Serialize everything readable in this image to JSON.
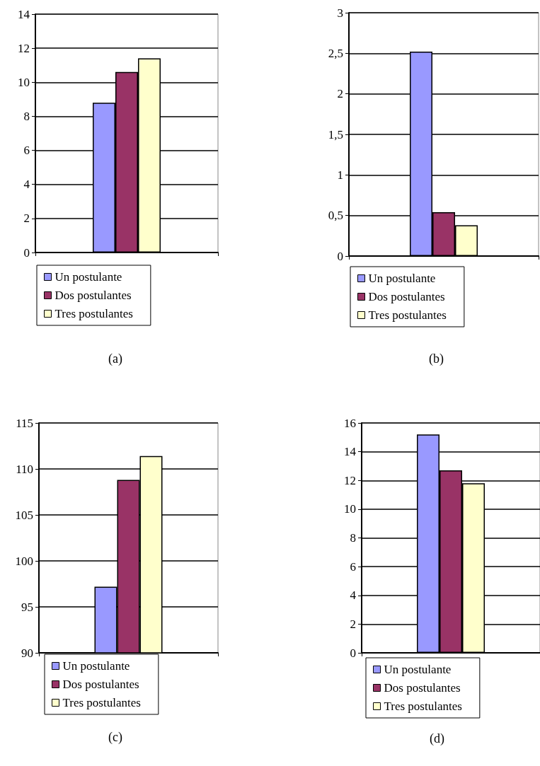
{
  "chart_data": [
    {
      "type": "bar",
      "categories": [
        null
      ],
      "series": [
        {
          "name": "Un postulante",
          "color": "#9999ff",
          "values": [
            8.8
          ]
        },
        {
          "name": "Dos postulantes",
          "color": "#993366",
          "values": [
            10.6
          ]
        },
        {
          "name": "Tres postulantes",
          "color": "#ffffcc",
          "values": [
            11.4
          ]
        }
      ],
      "ylim": [
        0,
        14
      ],
      "yticks": [
        0,
        2,
        4,
        6,
        8,
        10,
        12,
        14
      ],
      "grid": "y",
      "legend": "bottom",
      "annotations": [
        "(a)"
      ]
    },
    {
      "type": "bar",
      "categories": [
        null
      ],
      "series": [
        {
          "name": "Un postulante",
          "color": "#9999ff",
          "values": [
            2.52
          ]
        },
        {
          "name": "Dos postulantes",
          "color": "#993366",
          "values": [
            0.54
          ]
        },
        {
          "name": "Tres postulantes",
          "color": "#ffffcc",
          "values": [
            0.38
          ]
        }
      ],
      "ylim": [
        0,
        3
      ],
      "yticks": [
        0,
        {
          "value": 0.5,
          "label": "0,5"
        },
        1,
        {
          "value": 1.5,
          "label": "1,5"
        },
        2,
        {
          "value": 2.5,
          "label": "2,5"
        },
        3
      ],
      "grid": "y",
      "legend": "bottom",
      "annotations": [
        "(b)"
      ]
    },
    {
      "type": "bar",
      "categories": [
        null
      ],
      "series": [
        {
          "name": "Un postulante",
          "color": "#9999ff",
          "values": [
            97.2
          ]
        },
        {
          "name": "Dos postulantes",
          "color": "#993366",
          "values": [
            108.8
          ]
        },
        {
          "name": "Tres postulantes",
          "color": "#ffffcc",
          "values": [
            111.4
          ]
        }
      ],
      "ylim": [
        90,
        115
      ],
      "yticks": [
        90,
        95,
        100,
        105,
        110,
        115
      ],
      "grid": "y",
      "legend": "bottom",
      "annotations": [
        "(c)"
      ]
    },
    {
      "type": "bar",
      "categories": [
        null
      ],
      "series": [
        {
          "name": "Un postulante",
          "color": "#9999ff",
          "values": [
            15.2
          ]
        },
        {
          "name": "Dos postulantes",
          "color": "#993366",
          "values": [
            12.7
          ]
        },
        {
          "name": "Tres postulantes",
          "color": "#ffffcc",
          "values": [
            11.8
          ]
        }
      ],
      "ylim": [
        0,
        16
      ],
      "yticks": [
        0,
        2,
        4,
        6,
        8,
        10,
        12,
        14,
        16
      ],
      "grid": "y",
      "legend": "bottom",
      "annotations": [
        "(d)"
      ]
    }
  ]
}
